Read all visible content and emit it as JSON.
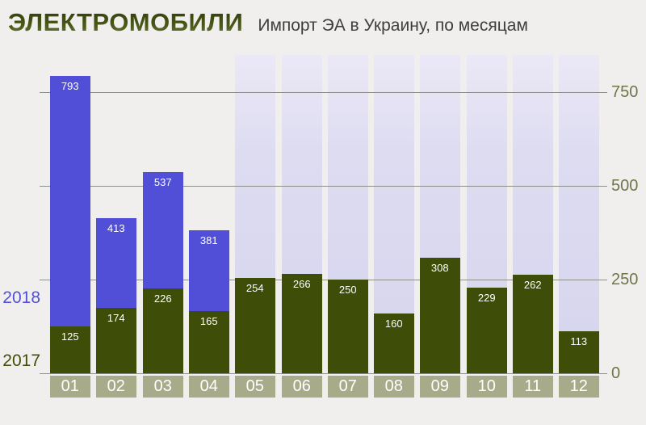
{
  "header": {
    "title": "ЭЛЕКТРОМОБИЛИ",
    "subtitle": "Импорт ЭА в Украину, по месяцам"
  },
  "chart_data": {
    "type": "bar",
    "title": "ЭЛЕКТРОМОБИЛИ",
    "subtitle": "Импорт ЭА в Украину, по месяцам",
    "categories": [
      "01",
      "02",
      "03",
      "04",
      "05",
      "06",
      "07",
      "08",
      "09",
      "10",
      "11",
      "12"
    ],
    "series": [
      {
        "name": "2018",
        "color": "#514fd8",
        "values": [
          793,
          413,
          537,
          381,
          null,
          null,
          null,
          null,
          null,
          null,
          null,
          null
        ]
      },
      {
        "name": "2017",
        "color": "#3e4d08",
        "values": [
          125,
          174,
          226,
          165,
          254,
          266,
          250,
          160,
          308,
          229,
          262,
          113
        ]
      }
    ],
    "yticks": [
      0,
      250,
      500,
      750
    ],
    "ylim": [
      0,
      850
    ],
    "grid": true,
    "axis_side": "right",
    "legend_position": "left",
    "placeholder_months": [
      "05",
      "06",
      "07",
      "08",
      "09",
      "10",
      "11",
      "12"
    ],
    "placeholder_color": "#d7d5ee",
    "month_band_color": "#a8ab8a",
    "axis_label_color": "#70764a",
    "grid_color": "#8e8e8a",
    "value_label_color": "#ffffff",
    "background": "#f0efed"
  }
}
